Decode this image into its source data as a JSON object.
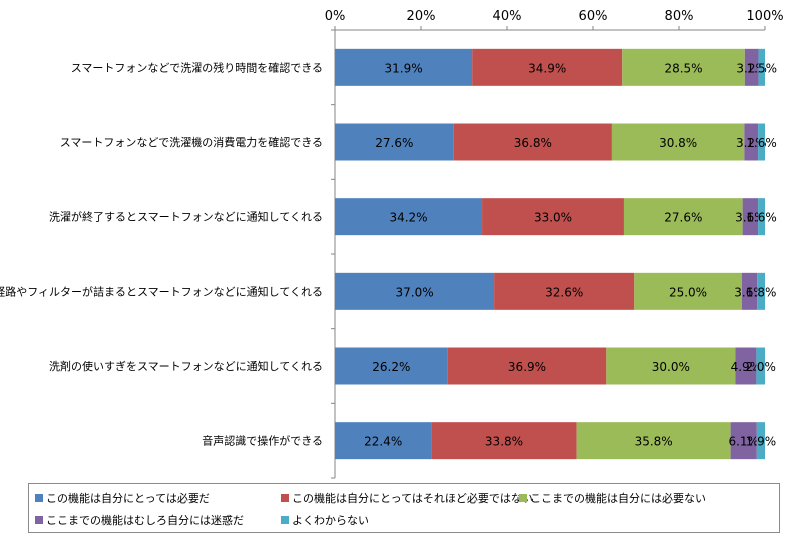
{
  "chart_data": {
    "type": "bar",
    "orientation": "horizontal",
    "stacked": true,
    "categories": [
      "スマートフォンなどで洗濯の残り時間を確認できる",
      "スマートフォンなどで洗濯機の消費電力を確認できる",
      "洗濯が終了するとスマートフォンなどに通知してくれる",
      "排水経路やフィルターが詰まるとスマートフォンなどに通知してくれる",
      "洗剤の使いすぎをスマートフォンなどに通知してくれる",
      "音声認識で操作ができる"
    ],
    "series": [
      {
        "name": "この機能は自分にとっては必要だ",
        "color": "#4f81bd",
        "values": [
          31.9,
          27.6,
          34.2,
          37.0,
          26.2,
          22.4
        ]
      },
      {
        "name": "この機能は自分にとってはそれほど必要ではない",
        "color": "#c0504d",
        "values": [
          34.9,
          36.8,
          33.0,
          32.6,
          36.9,
          33.8
        ]
      },
      {
        "name": "ここまでの機能は自分には必要ない",
        "color": "#9bbb59",
        "values": [
          28.5,
          30.8,
          27.6,
          25.0,
          30.0,
          35.8
        ]
      },
      {
        "name": "ここまでの機能はむしろ自分には迷惑だ",
        "color": "#8064a2",
        "values": [
          3.2,
          3.2,
          3.6,
          3.6,
          4.9,
          6.1
        ]
      },
      {
        "name": "よくわからない",
        "color": "#4bacc6",
        "values": [
          1.5,
          1.6,
          1.6,
          1.8,
          2.0,
          1.9
        ]
      }
    ],
    "value_labels": [
      [
        "31.9%",
        "34.9%",
        "28.5%",
        "3.2%",
        "1.5%"
      ],
      [
        "27.6%",
        "36.8%",
        "30.8%",
        "3.2%",
        "1.6%"
      ],
      [
        "34.2%",
        "33.0%",
        "27.6%",
        "3.6%",
        "1.6%"
      ],
      [
        "37.0%",
        "32.6%",
        "25.0%",
        "3.6%",
        "1.8%"
      ],
      [
        "26.2%",
        "36.9%",
        "30.0%",
        "4.9%",
        "2.0%"
      ],
      [
        "22.4%",
        "33.8%",
        "35.8%",
        "6.1%",
        "1.9%"
      ]
    ],
    "xlim": [
      0,
      100
    ],
    "xticks": [
      "0%",
      "20%",
      "40%",
      "60%",
      "80%",
      "100%"
    ],
    "title": "",
    "xlabel": "",
    "ylabel": "",
    "grid": false,
    "legend_position": "bottom"
  }
}
